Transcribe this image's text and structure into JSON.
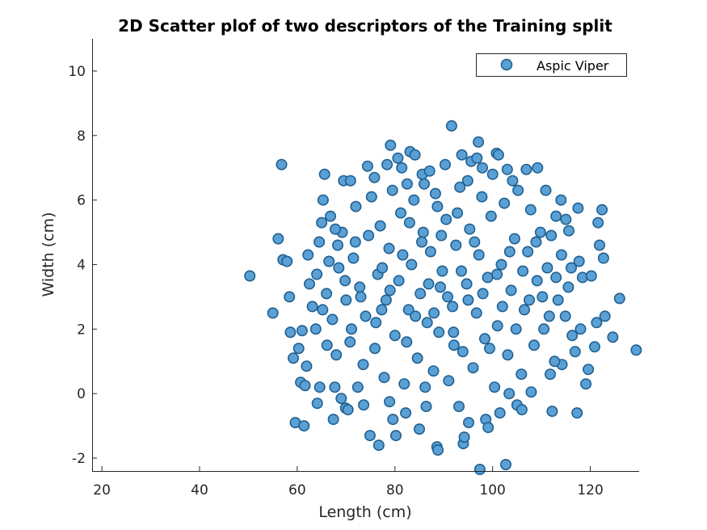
{
  "chart_data": {
    "type": "scatter",
    "title": "2D Scatter plof of two descriptors of the Training split",
    "xlabel": "Length (cm)",
    "ylabel": "Width (cm)",
    "xlim": [
      18,
      130
    ],
    "ylim": [
      -2.4,
      11
    ],
    "xticks": [
      "20",
      "40",
      "60",
      "80",
      "100",
      "120"
    ],
    "yticks": [
      "-2",
      "0",
      "2",
      "4",
      "6",
      "8",
      "10"
    ],
    "legend_position": "top-right",
    "marker_color": "#5aa0d4",
    "marker_edge_color": "#1f5f91",
    "series": [
      {
        "name": "Aspic Viper",
        "points": [
          [
            50.3,
            3.65
          ],
          [
            55.0,
            2.5
          ],
          [
            56.1,
            4.8
          ],
          [
            56.8,
            7.1
          ],
          [
            57.1,
            4.15
          ],
          [
            57.9,
            4.1
          ],
          [
            58.4,
            3.0
          ],
          [
            58.6,
            1.9
          ],
          [
            59.2,
            1.1
          ],
          [
            59.6,
            -0.9
          ],
          [
            60.3,
            1.4
          ],
          [
            60.7,
            0.35
          ],
          [
            61.0,
            1.95
          ],
          [
            61.4,
            -1.0
          ],
          [
            61.6,
            0.25
          ],
          [
            61.9,
            0.85
          ],
          [
            62.2,
            4.3
          ],
          [
            63.1,
            2.7
          ],
          [
            64.1,
            -0.3
          ],
          [
            64.6,
            0.2
          ],
          [
            65.0,
            5.3
          ],
          [
            65.3,
            6.0
          ],
          [
            65.6,
            6.8
          ],
          [
            66.1,
            1.5
          ],
          [
            67.4,
            -0.8
          ],
          [
            67.7,
            0.2
          ],
          [
            68.3,
            4.6
          ],
          [
            69.0,
            -0.15
          ],
          [
            69.5,
            6.6
          ],
          [
            69.9,
            -0.45
          ],
          [
            70.4,
            -0.5
          ],
          [
            70.9,
            6.6
          ],
          [
            72.4,
            0.2
          ],
          [
            73.6,
            -0.35
          ],
          [
            74.4,
            7.05
          ],
          [
            74.9,
            -1.3
          ],
          [
            75.8,
            6.7
          ],
          [
            76.7,
            -1.6
          ],
          [
            77.3,
            2.6
          ],
          [
            78.4,
            7.1
          ],
          [
            78.9,
            -0.25
          ],
          [
            79.1,
            7.7
          ],
          [
            79.6,
            -0.8
          ],
          [
            80.2,
            -1.3
          ],
          [
            80.6,
            7.3
          ],
          [
            81.4,
            7.0
          ],
          [
            82.2,
            -0.6
          ],
          [
            82.5,
            6.5
          ],
          [
            83.1,
            7.5
          ],
          [
            84.1,
            7.4
          ],
          [
            85.0,
            -1.1
          ],
          [
            85.6,
            6.8
          ],
          [
            86.2,
            0.2
          ],
          [
            86.4,
            -0.4
          ],
          [
            87.1,
            6.9
          ],
          [
            88.6,
            -1.65
          ],
          [
            88.8,
            -1.75
          ],
          [
            89.3,
            3.3
          ],
          [
            90.3,
            7.1
          ],
          [
            91.6,
            8.3
          ],
          [
            92.1,
            1.5
          ],
          [
            93.1,
            -0.4
          ],
          [
            93.7,
            7.4
          ],
          [
            94.0,
            -1.55
          ],
          [
            94.2,
            -1.35
          ],
          [
            95.1,
            -0.9
          ],
          [
            95.6,
            7.2
          ],
          [
            96.8,
            7.3
          ],
          [
            97.1,
            7.8
          ],
          [
            97.4,
            -2.35
          ],
          [
            97.9,
            7.0
          ],
          [
            98.6,
            -0.8
          ],
          [
            99.1,
            -1.05
          ],
          [
            100.0,
            6.8
          ],
          [
            100.8,
            7.45
          ],
          [
            101.2,
            7.4
          ],
          [
            101.5,
            -0.6
          ],
          [
            102.7,
            -2.2
          ],
          [
            103.0,
            6.95
          ],
          [
            103.4,
            0.0
          ],
          [
            104.1,
            6.6
          ],
          [
            105.0,
            -0.35
          ],
          [
            106.0,
            -0.5
          ],
          [
            106.9,
            6.95
          ],
          [
            107.9,
            0.05
          ],
          [
            109.2,
            7.0
          ],
          [
            110.9,
            6.3
          ],
          [
            111.8,
            0.6
          ],
          [
            112.2,
            -0.55
          ],
          [
            113.0,
            5.5
          ],
          [
            114.0,
            6.0
          ],
          [
            114.2,
            0.9
          ],
          [
            115.0,
            5.4
          ],
          [
            115.6,
            5.05
          ],
          [
            116.1,
            3.9
          ],
          [
            116.9,
            1.3
          ],
          [
            117.3,
            -0.6
          ],
          [
            117.5,
            5.75
          ],
          [
            117.7,
            4.1
          ],
          [
            118.0,
            2.0
          ],
          [
            118.4,
            3.6
          ],
          [
            119.1,
            0.3
          ],
          [
            119.6,
            0.75
          ],
          [
            120.2,
            3.65
          ],
          [
            120.9,
            1.45
          ],
          [
            121.3,
            2.2
          ],
          [
            121.6,
            5.3
          ],
          [
            121.9,
            4.6
          ],
          [
            122.4,
            5.7
          ],
          [
            122.7,
            4.2
          ],
          [
            123.0,
            2.4
          ],
          [
            124.6,
            1.75
          ],
          [
            126.0,
            2.95
          ],
          [
            129.4,
            1.35
          ],
          [
            62.5,
            3.4
          ],
          [
            63.8,
            2.0
          ],
          [
            64.5,
            4.7
          ],
          [
            66.0,
            3.1
          ],
          [
            66.8,
            5.5
          ],
          [
            67.2,
            2.3
          ],
          [
            68.0,
            1.2
          ],
          [
            68.5,
            3.9
          ],
          [
            69.2,
            5.0
          ],
          [
            70.0,
            2.9
          ],
          [
            70.8,
            1.6
          ],
          [
            71.5,
            4.2
          ],
          [
            72.0,
            5.8
          ],
          [
            72.8,
            3.3
          ],
          [
            73.5,
            0.9
          ],
          [
            74.0,
            2.4
          ],
          [
            74.6,
            4.9
          ],
          [
            75.2,
            6.1
          ],
          [
            75.9,
            1.4
          ],
          [
            76.5,
            3.7
          ],
          [
            77.0,
            5.2
          ],
          [
            77.8,
            0.5
          ],
          [
            78.2,
            2.9
          ],
          [
            78.8,
            4.5
          ],
          [
            79.5,
            6.3
          ],
          [
            80.0,
            1.8
          ],
          [
            80.8,
            3.5
          ],
          [
            81.2,
            5.6
          ],
          [
            81.9,
            0.3
          ],
          [
            82.8,
            2.6
          ],
          [
            83.4,
            4.0
          ],
          [
            83.9,
            6.0
          ],
          [
            84.6,
            1.1
          ],
          [
            85.2,
            3.1
          ],
          [
            85.8,
            5.0
          ],
          [
            86.6,
            2.2
          ],
          [
            87.3,
            4.4
          ],
          [
            87.9,
            0.7
          ],
          [
            88.3,
            6.2
          ],
          [
            89.0,
            1.9
          ],
          [
            89.7,
            3.8
          ],
          [
            90.5,
            5.4
          ],
          [
            91.0,
            0.4
          ],
          [
            91.8,
            2.7
          ],
          [
            92.5,
            4.6
          ],
          [
            93.3,
            6.4
          ],
          [
            93.9,
            1.3
          ],
          [
            94.7,
            3.4
          ],
          [
            95.3,
            5.1
          ],
          [
            96.0,
            0.8
          ],
          [
            96.7,
            2.5
          ],
          [
            97.2,
            4.3
          ],
          [
            97.8,
            6.1
          ],
          [
            98.4,
            1.7
          ],
          [
            99.0,
            3.6
          ],
          [
            99.7,
            5.5
          ],
          [
            100.4,
            0.2
          ],
          [
            101.0,
            2.1
          ],
          [
            101.8,
            4.0
          ],
          [
            102.4,
            5.9
          ],
          [
            103.1,
            1.2
          ],
          [
            103.8,
            3.2
          ],
          [
            104.5,
            4.8
          ],
          [
            105.2,
            6.3
          ],
          [
            105.9,
            0.6
          ],
          [
            106.5,
            2.6
          ],
          [
            107.2,
            4.4
          ],
          [
            107.8,
            5.7
          ],
          [
            108.5,
            1.5
          ],
          [
            109.1,
            3.5
          ],
          [
            109.8,
            5.0
          ],
          [
            110.5,
            2.0
          ],
          [
            111.2,
            3.9
          ],
          [
            112.0,
            4.9
          ],
          [
            112.7,
            1.0
          ],
          [
            113.4,
            2.9
          ],
          [
            114.1,
            4.3
          ],
          [
            114.9,
            2.4
          ],
          [
            115.5,
            3.3
          ],
          [
            116.3,
            1.8
          ],
          [
            64.0,
            3.7
          ],
          [
            65.2,
            2.6
          ],
          [
            66.5,
            4.1
          ],
          [
            67.8,
            5.1
          ],
          [
            69.8,
            3.5
          ],
          [
            71.1,
            2.0
          ],
          [
            71.9,
            4.7
          ],
          [
            73.0,
            3.0
          ],
          [
            76.1,
            2.2
          ],
          [
            77.4,
            3.9
          ],
          [
            79.0,
            3.2
          ],
          [
            81.6,
            4.3
          ],
          [
            82.4,
            1.6
          ],
          [
            84.2,
            2.4
          ],
          [
            85.5,
            4.7
          ],
          [
            86.9,
            3.4
          ],
          [
            88.0,
            2.5
          ],
          [
            89.5,
            4.9
          ],
          [
            90.8,
            3.0
          ],
          [
            92.0,
            1.9
          ],
          [
            93.6,
            3.8
          ],
          [
            95.0,
            2.9
          ],
          [
            96.3,
            4.7
          ],
          [
            98.0,
            3.1
          ],
          [
            99.4,
            1.4
          ],
          [
            100.9,
            3.7
          ],
          [
            102.0,
            2.7
          ],
          [
            103.5,
            4.4
          ],
          [
            104.8,
            2.0
          ],
          [
            106.2,
            3.8
          ],
          [
            107.5,
            2.9
          ],
          [
            108.9,
            4.7
          ],
          [
            110.2,
            3.0
          ],
          [
            111.6,
            2.4
          ],
          [
            113.0,
            3.6
          ],
          [
            88.7,
            5.8
          ],
          [
            92.8,
            5.6
          ],
          [
            86.0,
            6.5
          ],
          [
            94.9,
            6.6
          ],
          [
            83.0,
            5.3
          ]
        ]
      }
    ]
  }
}
